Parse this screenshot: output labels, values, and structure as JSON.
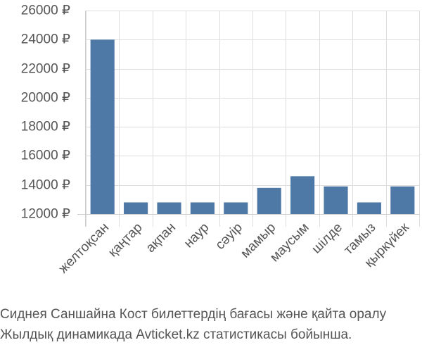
{
  "chart_data": {
    "type": "bar",
    "categories": [
      "желтоқсан",
      "қаңтар",
      "ақпан",
      "наур",
      "сәуір",
      "мамыр",
      "маусым",
      "шілде",
      "тамыз",
      "қыркүйек"
    ],
    "values": [
      24000,
      12800,
      12800,
      12800,
      12800,
      13800,
      14600,
      13900,
      12800,
      13900
    ],
    "ylim": [
      12000,
      26000
    ],
    "yticks": [
      12000,
      14000,
      16000,
      18000,
      20000,
      22000,
      24000,
      26000
    ],
    "ytick_labels": [
      "12000 ₽",
      "14000 ₽",
      "16000 ₽",
      "18000 ₽",
      "20000 ₽",
      "22000 ₽",
      "24000 ₽",
      "26000 ₽"
    ],
    "grid": true,
    "bar_color": "#4e79a7",
    "grid_color": "#dddddd",
    "axis_color": "#cccccc"
  },
  "caption": {
    "line1": "Сиднея Саншайна Кост билеттердің бағасы және қайта оралу",
    "line2": "Жылдық динамикада Avticket.kz статистикасы бойынша."
  }
}
